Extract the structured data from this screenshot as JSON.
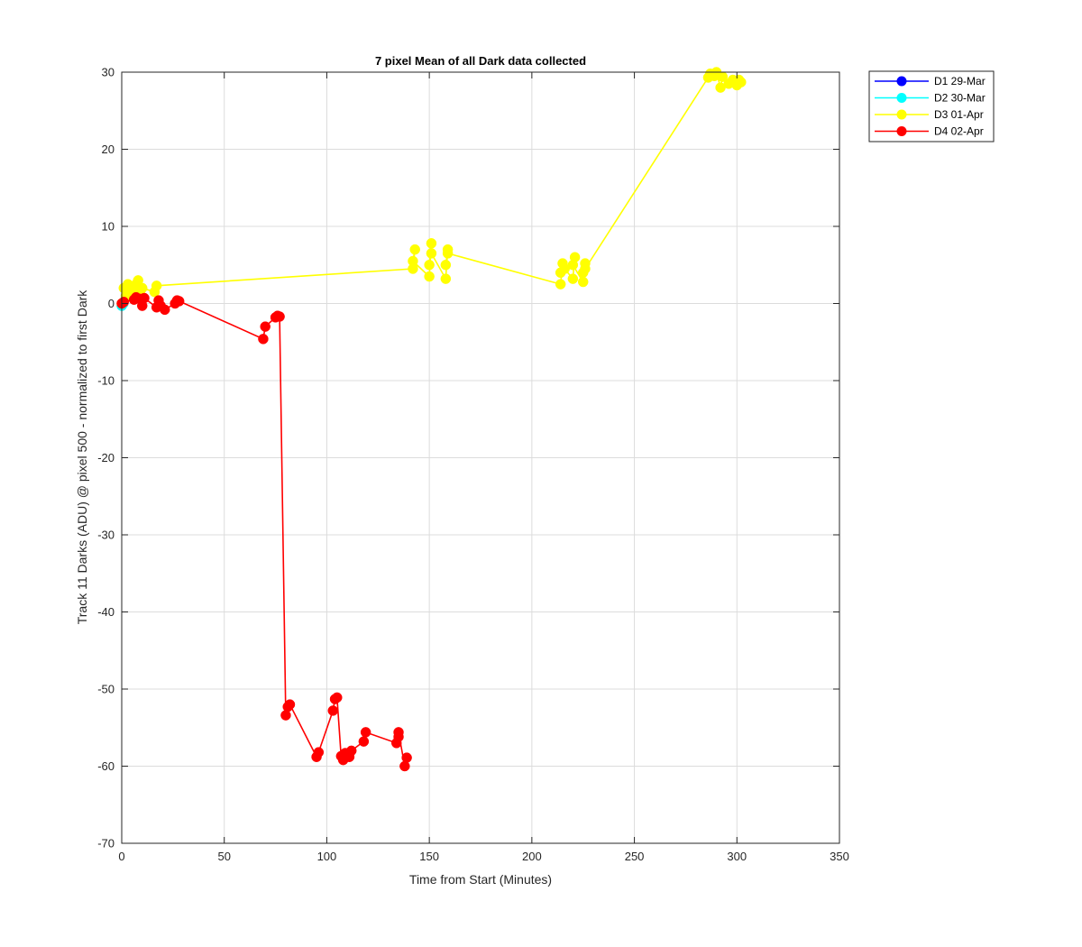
{
  "chart_data": {
    "type": "line",
    "title": "7 pixel Mean of all Dark data collected",
    "xlabel": "Time from Start (Minutes)",
    "ylabel": "Track 11 Darks (ADU) @ pixel 500 - normalized to first Dark",
    "xlim": [
      0,
      350
    ],
    "ylim": [
      -70,
      30
    ],
    "xticks": [
      0,
      50,
      100,
      150,
      200,
      250,
      300,
      350
    ],
    "yticks": [
      -70,
      -60,
      -50,
      -40,
      -30,
      -20,
      -10,
      0,
      10,
      20,
      30
    ],
    "grid": true,
    "legend_position": "outside-top-right",
    "series": [
      {
        "name": "D1 29-Mar",
        "color": "#0000ff",
        "x": [
          0.3
        ],
        "y": [
          0
        ]
      },
      {
        "name": "D2 30-Mar",
        "color": "#00ffff",
        "x": [
          0,
          0.8
        ],
        "y": [
          -0.3,
          0
        ]
      },
      {
        "name": "D3 01-Apr",
        "color": "#ffff00",
        "x": [
          0,
          1,
          2,
          3,
          4,
          5,
          6,
          7,
          8,
          9,
          10,
          16,
          17,
          142,
          143,
          142,
          150,
          151,
          150,
          151,
          158,
          159,
          158,
          159,
          214,
          215,
          214,
          216,
          220,
          221,
          220,
          225,
          226,
          225,
          226,
          286,
          287,
          289,
          290,
          292,
          293,
          296,
          298,
          300,
          301,
          302
        ],
        "y": [
          0,
          2,
          1,
          2.5,
          1.5,
          2,
          1,
          2.5,
          3,
          1.5,
          2,
          1.5,
          2.3,
          4.5,
          7,
          5.5,
          3.5,
          7.8,
          5,
          6.5,
          3.2,
          7,
          5,
          6.5,
          2.5,
          5.2,
          4,
          4.5,
          3.2,
          6,
          5,
          2.8,
          5.2,
          4,
          4.5,
          29.3,
          29.8,
          29.5,
          30,
          28,
          29.4,
          28.5,
          29,
          28.3,
          29,
          28.7
        ]
      },
      {
        "name": "D4 02-Apr",
        "color": "#ff0000",
        "x": [
          0,
          1,
          6,
          7,
          9,
          10,
          11,
          17,
          18,
          19,
          21,
          26,
          27,
          28,
          69,
          70,
          75,
          76,
          77,
          80,
          81,
          82,
          95,
          96,
          103,
          104,
          105,
          107,
          108,
          109,
          111,
          112,
          118,
          119,
          134,
          135,
          135,
          138,
          139
        ],
        "y": [
          0,
          0.2,
          0.5,
          0.8,
          0.6,
          -0.3,
          0.7,
          -0.5,
          0.4,
          -0.3,
          -0.8,
          0,
          0.4,
          0.3,
          -4.6,
          -3,
          -1.8,
          -1.6,
          -1.7,
          -53.4,
          -52.3,
          -52,
          -58.8,
          -58.2,
          -52.8,
          -51.3,
          -51.1,
          -58.7,
          -59.2,
          -58.3,
          -58.8,
          -58,
          -56.8,
          -55.6,
          -57,
          -56.2,
          -55.6,
          -60,
          -58.9
        ]
      }
    ]
  }
}
